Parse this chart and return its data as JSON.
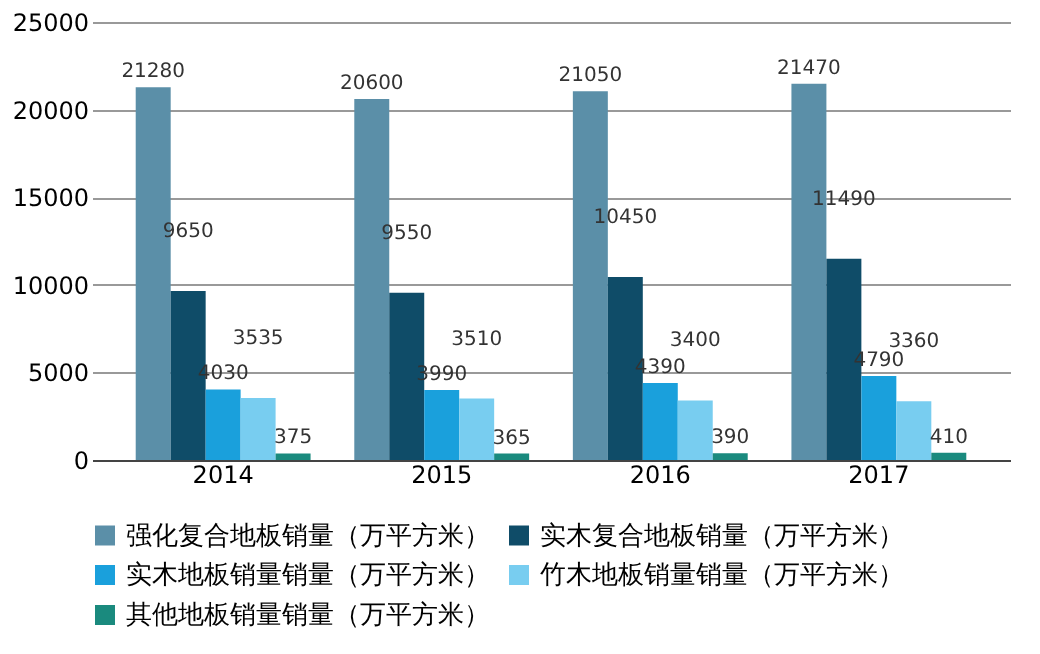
{
  "chart_data": {
    "type": "bar",
    "categories": [
      "2014",
      "2015",
      "2016",
      "2017"
    ],
    "series": [
      {
        "name": "强化复合地板销量（万平方米）",
        "color": "#5b8fa8",
        "values": [
          21280,
          20600,
          21050,
          21470
        ]
      },
      {
        "name": "实木复合地板销量（万平方米）",
        "color": "#0f4c68",
        "values": [
          9650,
          9550,
          10450,
          11490
        ]
      },
      {
        "name": "实木地板销量销量（万平方米）",
        "color": "#1aa0dc",
        "values": [
          4030,
          3990,
          4390,
          4790
        ]
      },
      {
        "name": "竹木地板销量销量（万平方米）",
        "color": "#78cdf0",
        "values": [
          3535,
          3510,
          3400,
          3360
        ]
      },
      {
        "name": "其他地板销量销量（万平方米）",
        "color": "#1a8a7e",
        "values": [
          375,
          365,
          390,
          410
        ]
      }
    ],
    "ylim": [
      0,
      25000
    ],
    "yticks": [
      0,
      5000,
      10000,
      15000,
      20000,
      25000
    ],
    "grid": "y",
    "legend": "bottom",
    "data_labels": true
  }
}
